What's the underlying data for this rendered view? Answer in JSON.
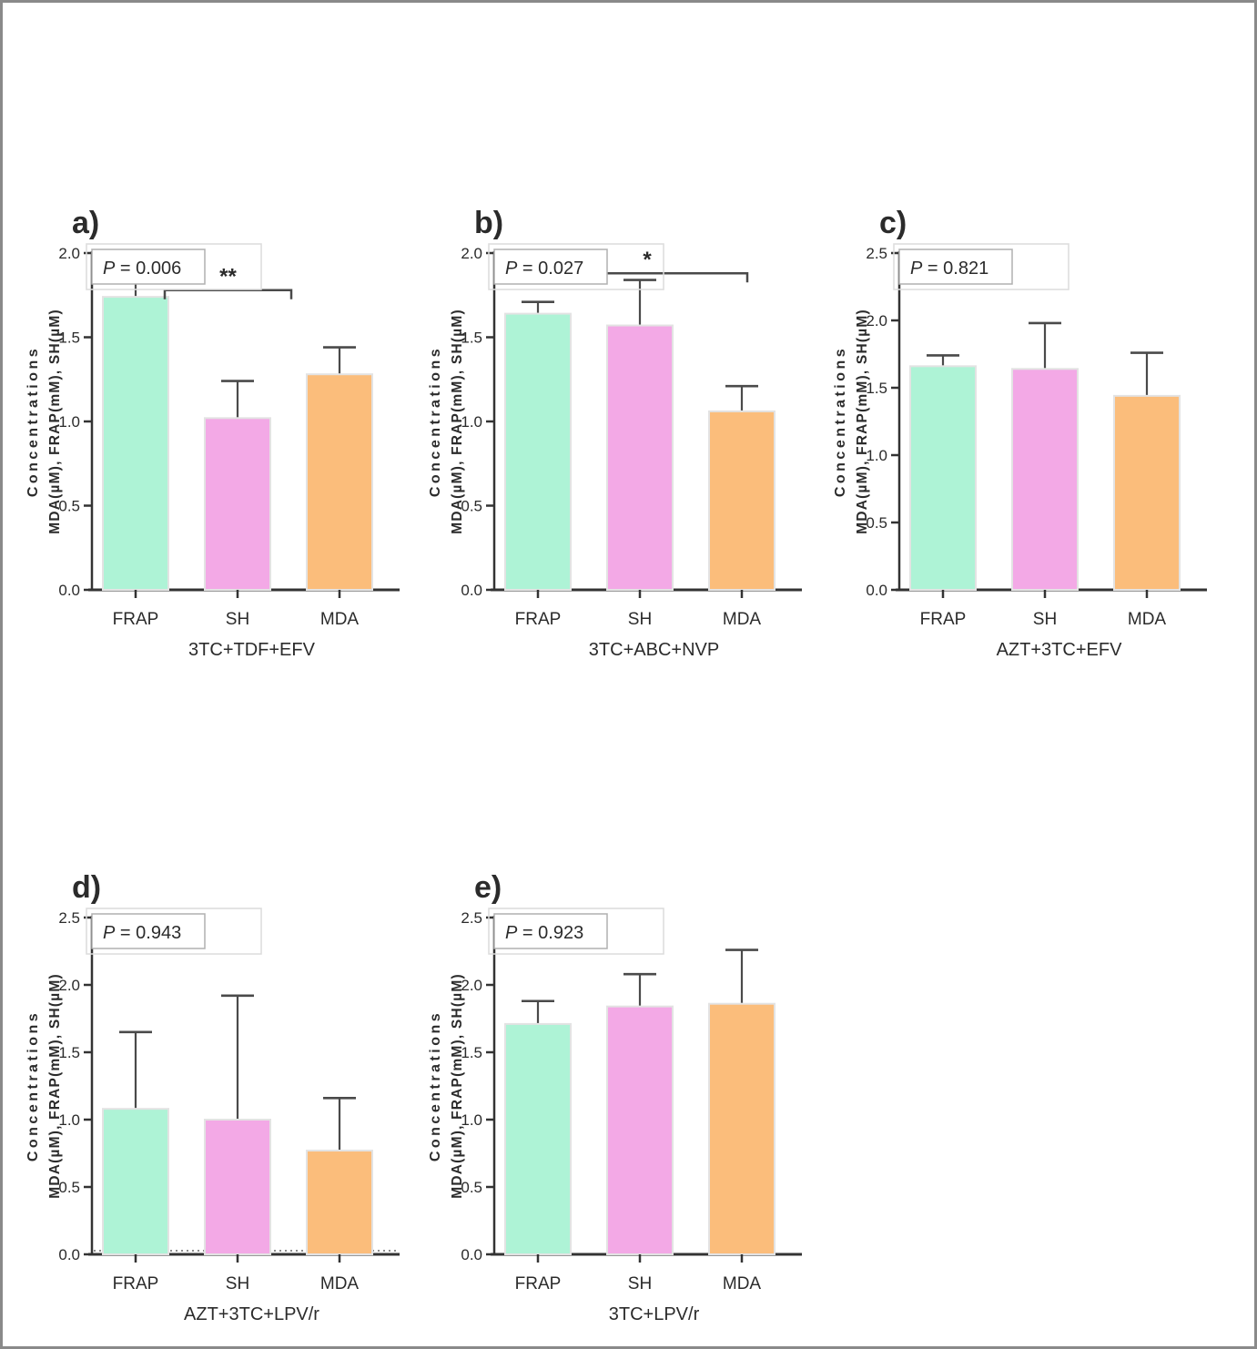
{
  "figure": {
    "ylabel_line1": "Concentrations",
    "ylabel_line2": "MDA(µM), FRAP(mM), SH(µM)"
  },
  "colors": {
    "FRAP": "#AEF3D6",
    "SH": "#F3A9E6",
    "MDA": "#FBBD7B",
    "bar_outline": "#e3e3e3",
    "axis": "#333333",
    "error_bar": "#4a4a4a",
    "text": "#2b2b2b",
    "pbox_inner_border": "#b0b0b0",
    "pbox_outer_border": "#dcdcdc"
  },
  "chart_data": [
    {
      "id": "a",
      "type": "bar",
      "panel_label": "a)",
      "p_label": "P = 0.006",
      "categories": [
        "FRAP",
        "SH",
        "MDA"
      ],
      "values": [
        1.74,
        1.02,
        1.28
      ],
      "errors_up": [
        0.09,
        0.22,
        0.16
      ],
      "xlabel": "3TC+TDF+EFV",
      "ylim": [
        0,
        2.0
      ],
      "ytick_step": 0.5,
      "grid": false,
      "significance": {
        "label": "**",
        "from": 0,
        "to": 1,
        "y": 1.78,
        "dx1": 32,
        "dx2": 59
      },
      "baseline": "solid"
    },
    {
      "id": "b",
      "type": "bar",
      "panel_label": "b)",
      "p_label": "P = 0.027",
      "categories": [
        "FRAP",
        "SH",
        "MDA"
      ],
      "values": [
        1.64,
        1.57,
        1.06
      ],
      "errors_up": [
        0.07,
        0.27,
        0.15
      ],
      "xlabel": "3TC+ABC+NVP",
      "ylim": [
        0,
        2.0
      ],
      "ytick_step": 0.5,
      "grid": false,
      "significance": {
        "label": "*",
        "from": 0,
        "to": 2,
        "y": 1.88,
        "dx1": 10,
        "dx2": 6
      },
      "baseline": "solid"
    },
    {
      "id": "c",
      "type": "bar",
      "panel_label": "c)",
      "p_label": "P = 0.821",
      "categories": [
        "FRAP",
        "SH",
        "MDA"
      ],
      "values": [
        1.66,
        1.64,
        1.44
      ],
      "errors_up": [
        0.08,
        0.34,
        0.32
      ],
      "xlabel": "AZT+3TC+EFV",
      "ylim": [
        0,
        2.5
      ],
      "ytick_step": 0.5,
      "grid": false,
      "significance": null,
      "baseline": "solid"
    },
    {
      "id": "d",
      "type": "bar",
      "panel_label": "d)",
      "p_label": "P = 0.943",
      "categories": [
        "FRAP",
        "SH",
        "MDA"
      ],
      "values": [
        1.08,
        1.0,
        0.77
      ],
      "errors_up": [
        0.57,
        0.92,
        0.39
      ],
      "xlabel": "AZT+3TC+LPV/r",
      "ylim": [
        0,
        2.5
      ],
      "ytick_step": 0.5,
      "grid": false,
      "significance": null,
      "baseline": "dotted"
    },
    {
      "id": "e",
      "type": "bar",
      "panel_label": "e)",
      "p_label": "P = 0.923",
      "categories": [
        "FRAP",
        "SH",
        "MDA"
      ],
      "values": [
        1.71,
        1.84,
        1.86
      ],
      "errors_up": [
        0.17,
        0.24,
        0.4
      ],
      "xlabel": "3TC+LPV/r",
      "ylim": [
        0,
        2.5
      ],
      "ytick_step": 0.5,
      "grid": false,
      "significance": null,
      "baseline": "solid"
    }
  ]
}
